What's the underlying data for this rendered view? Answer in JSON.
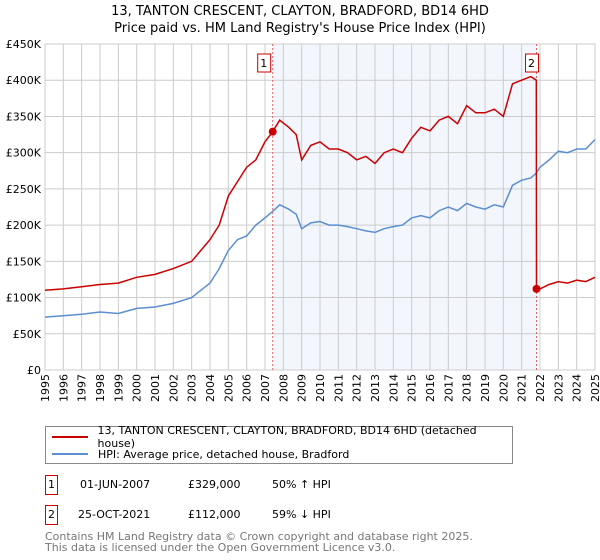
{
  "title": "13, TANTON CRESCENT, CLAYTON, BRADFORD, BD14 6HD",
  "subtitle": "Price paid vs. HM Land Registry's House Price Index (HPI)",
  "chart_data": {
    "type": "line",
    "xlim": [
      1995,
      2025
    ],
    "ylim": [
      0,
      450000
    ],
    "x_ticks": [
      "1995",
      "1996",
      "1997",
      "1998",
      "1999",
      "2000",
      "2001",
      "2002",
      "2003",
      "2004",
      "2005",
      "2006",
      "2007",
      "2008",
      "2009",
      "2010",
      "2011",
      "2012",
      "2013",
      "2014",
      "2015",
      "2016",
      "2017",
      "2018",
      "2019",
      "2020",
      "2021",
      "2022",
      "2023",
      "2024",
      "2025"
    ],
    "y_ticks": [
      {
        "v": 0,
        "l": "£0"
      },
      {
        "v": 50000,
        "l": "£50K"
      },
      {
        "v": 100000,
        "l": "£100K"
      },
      {
        "v": 150000,
        "l": "£150K"
      },
      {
        "v": 200000,
        "l": "£200K"
      },
      {
        "v": 250000,
        "l": "£250K"
      },
      {
        "v": 300000,
        "l": "£300K"
      },
      {
        "v": 350000,
        "l": "£350K"
      },
      {
        "v": 400000,
        "l": "£400K"
      },
      {
        "v": 450000,
        "l": "£450K"
      }
    ],
    "series": [
      {
        "name": "13, TANTON CRESCENT, CLAYTON, BRADFORD, BD14 6HD (detached house)",
        "color": "#cc0000",
        "x": [
          1995,
          1996,
          1997,
          1998,
          1999,
          2000,
          2001,
          2002,
          2003,
          2003.5,
          2004,
          2004.5,
          2005,
          2005.5,
          2006,
          2006.5,
          2007,
          2007.42,
          2007.8,
          2008.3,
          2008.7,
          2009,
          2009.5,
          2010,
          2010.5,
          2011,
          2011.5,
          2012,
          2012.5,
          2013,
          2013.5,
          2014,
          2014.5,
          2015,
          2015.5,
          2016,
          2016.5,
          2017,
          2017.5,
          2018,
          2018.5,
          2019,
          2019.5,
          2020,
          2020.5,
          2021,
          2021.5,
          2021.8,
          2021.81,
          2022,
          2022.5,
          2023,
          2023.5,
          2024,
          2024.5,
          2025
        ],
        "y": [
          110000,
          112000,
          115000,
          118000,
          120000,
          128000,
          132000,
          140000,
          150000,
          165000,
          180000,
          200000,
          240000,
          260000,
          280000,
          290000,
          315000,
          329000,
          345000,
          335000,
          325000,
          290000,
          310000,
          315000,
          305000,
          305000,
          300000,
          290000,
          295000,
          285000,
          300000,
          305000,
          300000,
          320000,
          335000,
          330000,
          345000,
          350000,
          340000,
          365000,
          355000,
          355000,
          360000,
          350000,
          395000,
          400000,
          405000,
          400000,
          112000,
          112000,
          118000,
          122000,
          120000,
          124000,
          122000,
          128000
        ]
      },
      {
        "name": "HPI: Average price, detached house, Bradford",
        "color": "#5b8fd0",
        "x": [
          1995,
          1996,
          1997,
          1998,
          1999,
          2000,
          2001,
          2002,
          2003,
          2003.5,
          2004,
          2004.5,
          2005,
          2005.5,
          2006,
          2006.5,
          2007,
          2007.42,
          2007.8,
          2008.3,
          2008.7,
          2009,
          2009.5,
          2010,
          2010.5,
          2011,
          2011.5,
          2012,
          2012.5,
          2013,
          2013.5,
          2014,
          2014.5,
          2015,
          2015.5,
          2016,
          2016.5,
          2017,
          2017.5,
          2018,
          2018.5,
          2019,
          2019.5,
          2020,
          2020.5,
          2021,
          2021.5,
          2021.8,
          2022,
          2022.5,
          2023,
          2023.5,
          2024,
          2024.5,
          2025
        ],
        "y": [
          73000,
          75000,
          77000,
          80000,
          78000,
          85000,
          87000,
          92000,
          100000,
          110000,
          120000,
          140000,
          165000,
          180000,
          185000,
          200000,
          210000,
          219000,
          228000,
          222000,
          215000,
          195000,
          203000,
          205000,
          200000,
          200000,
          198000,
          195000,
          192000,
          190000,
          195000,
          198000,
          200000,
          210000,
          213000,
          210000,
          220000,
          225000,
          220000,
          230000,
          225000,
          222000,
          228000,
          225000,
          255000,
          262000,
          265000,
          272000,
          280000,
          290000,
          302000,
          300000,
          305000,
          305000,
          318000
        ]
      }
    ],
    "annotations": [
      {
        "label": "1",
        "x": 2007.42,
        "y": 329000
      },
      {
        "label": "2",
        "x": 2021.81,
        "y": 112000
      }
    ],
    "shaded_range": [
      2007.42,
      2021.81
    ]
  },
  "legend": {
    "red": "13, TANTON CRESCENT, CLAYTON, BRADFORD, BD14 6HD (detached house)",
    "blue": "HPI: Average price, detached house, Bradford"
  },
  "sales": [
    {
      "n": "1",
      "date": "01-JUN-2007",
      "price": "£329,000",
      "hpi": "50% ↑ HPI"
    },
    {
      "n": "2",
      "date": "25-OCT-2021",
      "price": "£112,000",
      "hpi": "59% ↓ HPI"
    }
  ],
  "footer": [
    "Contains HM Land Registry data © Crown copyright and database right 2025.",
    "This data is licensed under the Open Government Licence v3.0."
  ]
}
